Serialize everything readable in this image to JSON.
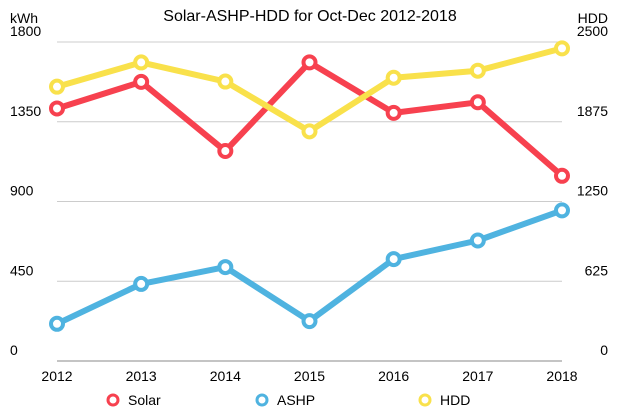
{
  "chart_data": {
    "type": "line",
    "title": "Solar-ASHP-HDD for Oct-Dec 2012-2018",
    "categories": [
      "2012",
      "2013",
      "2014",
      "2015",
      "2016",
      "2017",
      "2018"
    ],
    "y_left": {
      "label": "kWh",
      "range": [
        0,
        1800
      ],
      "ticks": [
        "0",
        "450",
        "900",
        "1350",
        "1800"
      ]
    },
    "y_right": {
      "label": "HDD",
      "range": [
        0,
        2500
      ],
      "ticks": [
        "0",
        "625",
        "1250",
        "1875",
        "2500"
      ]
    },
    "grid": true,
    "legend_position": "bottom",
    "series": [
      {
        "name": "Solar",
        "axis": "left",
        "color": "#f7414f",
        "values": [
          1425,
          1575,
          1185,
          1685,
          1400,
          1460,
          1045
        ]
      },
      {
        "name": "ASHP",
        "axis": "left",
        "color": "#4fb3e0",
        "values": [
          210,
          435,
          530,
          225,
          575,
          680,
          850
        ]
      },
      {
        "name": "HDD",
        "axis": "right",
        "color": "#f9e14b",
        "values": [
          2150,
          2340,
          2190,
          1800,
          2220,
          2275,
          2450
        ]
      }
    ]
  }
}
